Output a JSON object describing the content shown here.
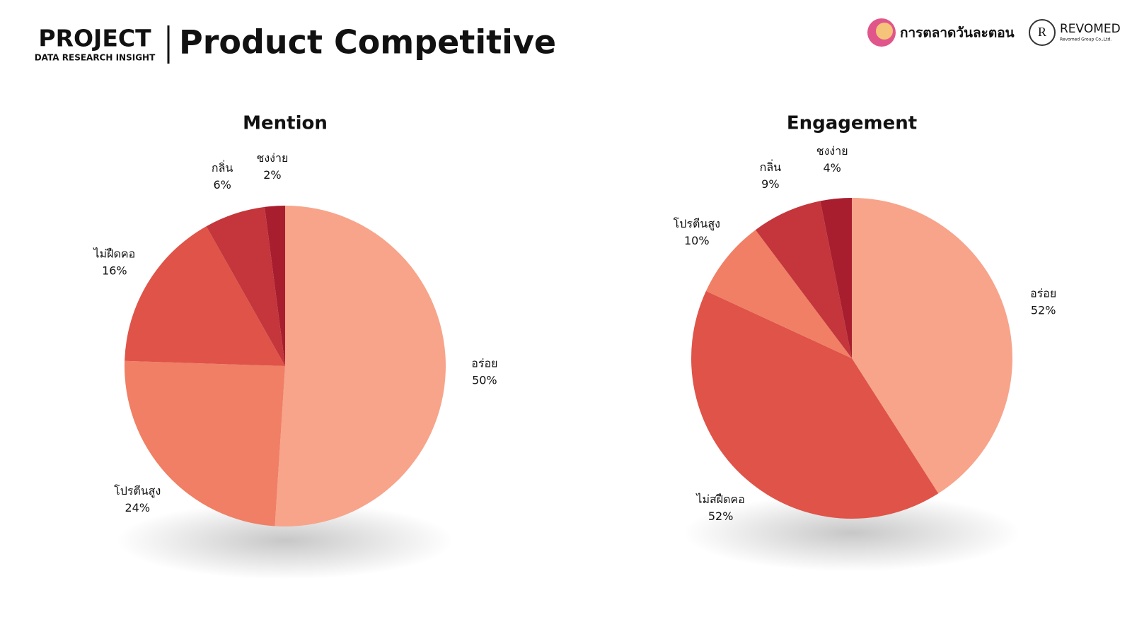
{
  "header": {
    "project": "PROJECT",
    "subtitle": "DATA RESEARCH INSIGHT",
    "title": "Product Competitive",
    "logo1": "การตลาดวันละตอน",
    "logo2": "REVOMED",
    "logo2_sub": "Revomed Group Co.,Ltd."
  },
  "chart_data": [
    {
      "type": "pie",
      "title": "Mention",
      "categories": [
        "อร่อย",
        "โปรตีนสูง",
        "ไม่ฝืดคอ",
        "กลิ่น",
        "ชงง่าย"
      ],
      "values": [
        50,
        24,
        16,
        6,
        2
      ],
      "value_labels": [
        "50%",
        "24%",
        "16%",
        "6%",
        "2%"
      ],
      "colors": [
        "#f7a48a",
        "#f07f65",
        "#e05348",
        "#c4363b",
        "#a81e2f"
      ]
    },
    {
      "type": "pie",
      "title": "Engagement",
      "categories": [
        "อร่อย",
        "ไม่สฝืดคอ",
        "โปรตีนสูง",
        "กลิ่น",
        "ชงง่าย"
      ],
      "values": [
        52,
        52,
        10,
        9,
        4
      ],
      "value_labels": [
        "52%",
        "52%",
        "10%",
        "9%",
        "4%"
      ],
      "colors": [
        "#f7a48a",
        "#e05348",
        "#f07f65",
        "#c4363b",
        "#a81e2f"
      ]
    }
  ]
}
